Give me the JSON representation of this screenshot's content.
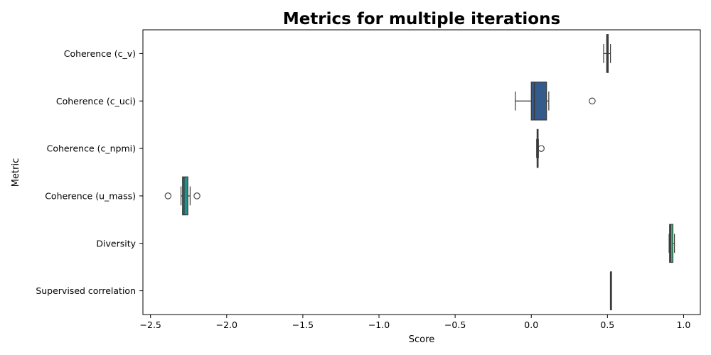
{
  "chart_data": {
    "type": "boxplot",
    "orientation": "horizontal",
    "title": "Metrics for multiple iterations",
    "xlabel": "Score",
    "ylabel": "Metric",
    "xlim": [
      -2.55,
      1.11
    ],
    "xticks": [
      -2.5,
      -2.0,
      -1.5,
      -1.0,
      -0.5,
      0.0,
      0.5,
      1.0
    ],
    "xtick_labels": [
      "−2.5",
      "−2.0",
      "−1.5",
      "−1.0",
      "−0.5",
      "0.0",
      "0.5",
      "1.0"
    ],
    "grid": false,
    "legend": "none",
    "categories": [
      "Coherence (c_v)",
      "Coherence (c_uci)",
      "Coherence (c_npmi)",
      "Coherence (u_mass)",
      "Diversity",
      "Supervised correlation"
    ],
    "boxes": [
      {
        "category": "Coherence (c_v)",
        "whisker_low": 0.475,
        "q1": 0.495,
        "median": 0.5,
        "q3": 0.505,
        "whisker_high": 0.52,
        "outliers": [],
        "color": "#3f2f6e"
      },
      {
        "category": "Coherence (c_uci)",
        "whisker_low": -0.105,
        "q1": 0.0,
        "median": 0.02,
        "q3": 0.1,
        "whisker_high": 0.115,
        "outliers": [
          0.4
        ],
        "color": "#355a8c"
      },
      {
        "category": "Coherence (c_npmi)",
        "whisker_low": 0.035,
        "q1": 0.038,
        "median": 0.04,
        "q3": 0.045,
        "whisker_high": 0.047,
        "outliers": [
          0.065
        ],
        "color": "#2b6d8e"
      },
      {
        "category": "Coherence (u_mass)",
        "whisker_low": -2.3,
        "q1": -2.29,
        "median": -2.28,
        "q3": -2.255,
        "whisker_high": -2.24,
        "outliers": [
          -2.385,
          -2.195
        ],
        "color": "#21918c"
      },
      {
        "category": "Diversity",
        "whisker_low": 0.905,
        "q1": 0.908,
        "median": 0.915,
        "q3": 0.93,
        "whisker_high": 0.94,
        "outliers": [],
        "color": "#35b779"
      },
      {
        "category": "Supervised correlation",
        "whisker_low": 0.52,
        "q1": 0.52,
        "median": 0.52,
        "q3": 0.52,
        "whisker_high": 0.52,
        "outliers": [],
        "color": "#6fcf57"
      }
    ],
    "line_color": "#3a3a3a"
  }
}
